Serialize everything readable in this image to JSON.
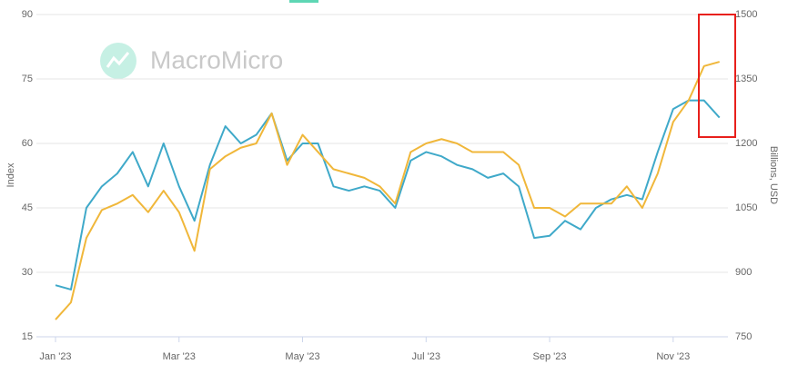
{
  "chart_data": {
    "type": "line",
    "watermark": "MacroMicro",
    "ylabel": "Index",
    "y2label": "Billions, USD",
    "categories": [
      "Jan '23",
      null,
      null,
      null,
      null,
      null,
      null,
      null,
      "Mar '23",
      null,
      null,
      null,
      null,
      null,
      null,
      null,
      "May '23",
      null,
      null,
      null,
      null,
      null,
      null,
      null,
      "Jul '23",
      null,
      null,
      null,
      null,
      null,
      null,
      null,
      "Sep '23",
      null,
      null,
      null,
      null,
      null,
      null,
      null,
      "Nov '23",
      null,
      null,
      null
    ],
    "series": [
      {
        "color": "#3fa9c9",
        "axis": "y",
        "values": [
          27,
          26,
          45,
          50,
          53,
          58,
          50,
          60,
          50,
          42,
          55,
          64,
          60,
          62,
          67,
          56,
          60,
          60,
          50,
          49,
          50,
          49,
          45,
          56,
          58,
          57,
          55,
          54,
          52,
          53,
          50,
          38,
          38.5,
          42,
          40,
          45,
          47,
          48,
          47,
          58,
          68,
          70,
          70,
          66
        ]
      },
      {
        "color": "#f0b73a",
        "axis": "y2",
        "values": [
          790,
          830,
          980,
          1045,
          1060,
          1080,
          1040,
          1090,
          1040,
          950,
          1140,
          1170,
          1190,
          1200,
          1270,
          1150,
          1220,
          1180,
          1140,
          1130,
          1120,
          1100,
          1060,
          1180,
          1200,
          1210,
          1200,
          1180,
          1180,
          1180,
          1150,
          1050,
          1050,
          1030,
          1060,
          1060,
          1060,
          1100,
          1050,
          1130,
          1250,
          1300,
          1380,
          1390
        ]
      }
    ],
    "ylim": [
      15,
      90
    ],
    "yticks": [
      15,
      30,
      45,
      60,
      75,
      90
    ],
    "y2lim": [
      750,
      1500
    ],
    "y2ticks": [
      750,
      900,
      1050,
      1200,
      1350,
      1500
    ],
    "grid": true
  }
}
